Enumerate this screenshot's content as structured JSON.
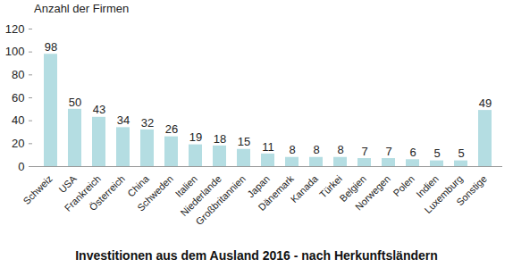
{
  "chart_data": {
    "type": "bar",
    "title": "Investitionen aus dem Ausland 2016 - nach Herkunftsländern",
    "y_label": "Anzahl der Firmen",
    "categories": [
      "Schweiz",
      "USA",
      "Frankreich",
      "Österreich",
      "China",
      "Schweden",
      "Italien",
      "Niederlande",
      "Großbritannien",
      "Japan",
      "Dänemark",
      "Kanada",
      "Türkei",
      "Belgien",
      "Norwegen",
      "Polen",
      "Indien",
      "Luxemburg",
      "Sonstige"
    ],
    "values": [
      98,
      50,
      43,
      34,
      32,
      26,
      19,
      18,
      15,
      11,
      8,
      8,
      8,
      7,
      7,
      6,
      5,
      5,
      49
    ],
    "color": "#b4dde2",
    "ylim": [
      0,
      120
    ],
    "yticks": [
      0,
      20,
      40,
      60,
      80,
      100,
      120
    ],
    "grid": false,
    "data_labels": true
  }
}
